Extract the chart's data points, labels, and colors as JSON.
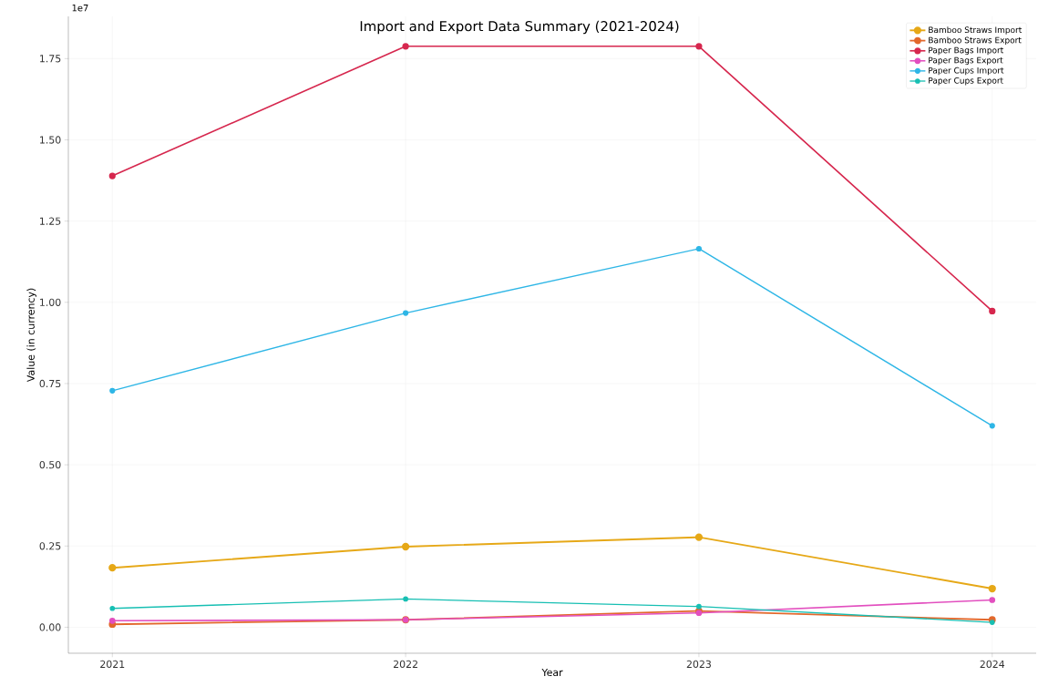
{
  "chart_data": {
    "type": "line",
    "title": "Import and Export Data Summary (2021-2024)",
    "xlabel": "Year",
    "ylabel": "Value (in currency)",
    "annotations": [
      "1e7"
    ],
    "x": [
      2021,
      2022,
      2023,
      2024
    ],
    "series": [
      {
        "name": "Bamboo Straws Import",
        "color": "#e6a817",
        "values": [
          0.183,
          0.248,
          0.277,
          0.119
        ]
      },
      {
        "name": "Bamboo Straws Export",
        "color": "#e2682c",
        "values": [
          0.009,
          0.023,
          0.05,
          0.023
        ]
      },
      {
        "name": "Paper Bags Import",
        "color": "#d6274e",
        "values": [
          1.389,
          1.788,
          1.788,
          0.973
        ]
      },
      {
        "name": "Paper Bags Export",
        "color": "#e24fbf",
        "values": [
          0.02,
          0.023,
          0.044,
          0.084
        ]
      },
      {
        "name": "Paper Cups Import",
        "color": "#2eb6e6",
        "values": [
          0.728,
          0.967,
          1.165,
          0.62
        ]
      },
      {
        "name": "Paper Cups Export",
        "color": "#17bfb3",
        "values": [
          0.058,
          0.087,
          0.064,
          0.015
        ]
      }
    ],
    "xlim": [
      2020.85,
      2024.15
    ],
    "ylim": [
      -0.08,
      1.88
    ],
    "xticks": [
      2021,
      2022,
      2023,
      2024
    ],
    "yticks": [
      {
        "value": 0,
        "label": "0.00"
      },
      {
        "value": 0.25,
        "label": "0.25"
      },
      {
        "value": 0.5,
        "label": "0.50"
      },
      {
        "value": 0.75,
        "label": "0.75"
      },
      {
        "value": 1.0,
        "label": "1.00"
      },
      {
        "value": 1.25,
        "label": "1.25"
      },
      {
        "value": 1.5,
        "label": "1.50"
      },
      {
        "value": 1.75,
        "label": "1.75"
      }
    ],
    "grid": true,
    "legend": "top right",
    "marker": "circle",
    "line_style": "solid"
  }
}
